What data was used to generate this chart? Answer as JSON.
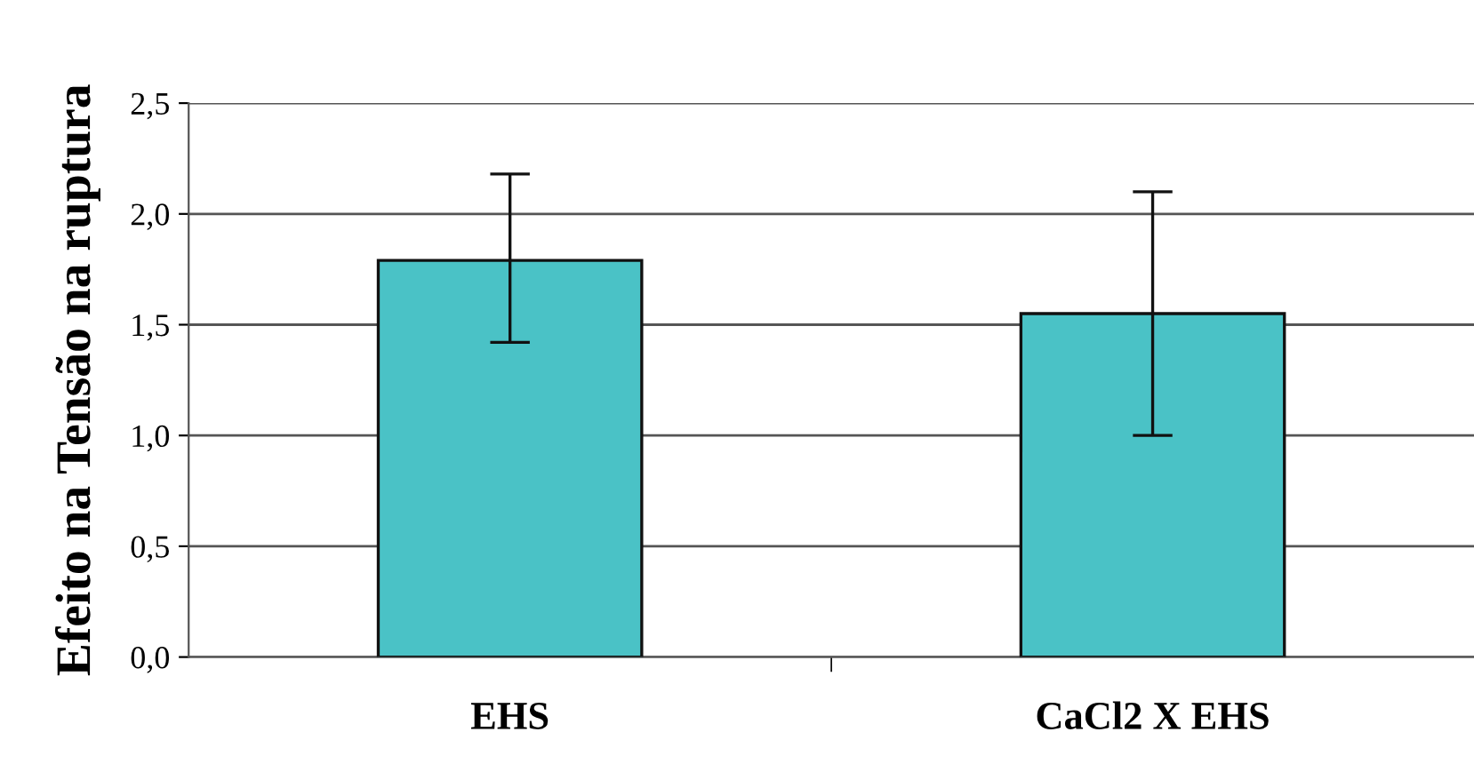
{
  "chart_data": {
    "type": "bar",
    "ylabel": "Efeito na Tensão na ruptura",
    "categories": [
      "EHS",
      "CaCl2 X EHS"
    ],
    "values": [
      1.79,
      1.55
    ],
    "errors": [
      [
        1.42,
        2.18
      ],
      [
        1.0,
        2.1
      ]
    ],
    "color": "#4ac2c6",
    "ylim": [
      0,
      2.5
    ],
    "yticks": [
      {
        "value": 0,
        "label": "0,0"
      },
      {
        "value": 0.5,
        "label": "0,5"
      },
      {
        "value": 1.0,
        "label": "1,0"
      },
      {
        "value": 1.5,
        "label": "1,5"
      },
      {
        "value": 2.0,
        "label": "2,0"
      },
      {
        "value": 2.5,
        "label": "2,5"
      }
    ],
    "grid": "y",
    "legend": false
  }
}
